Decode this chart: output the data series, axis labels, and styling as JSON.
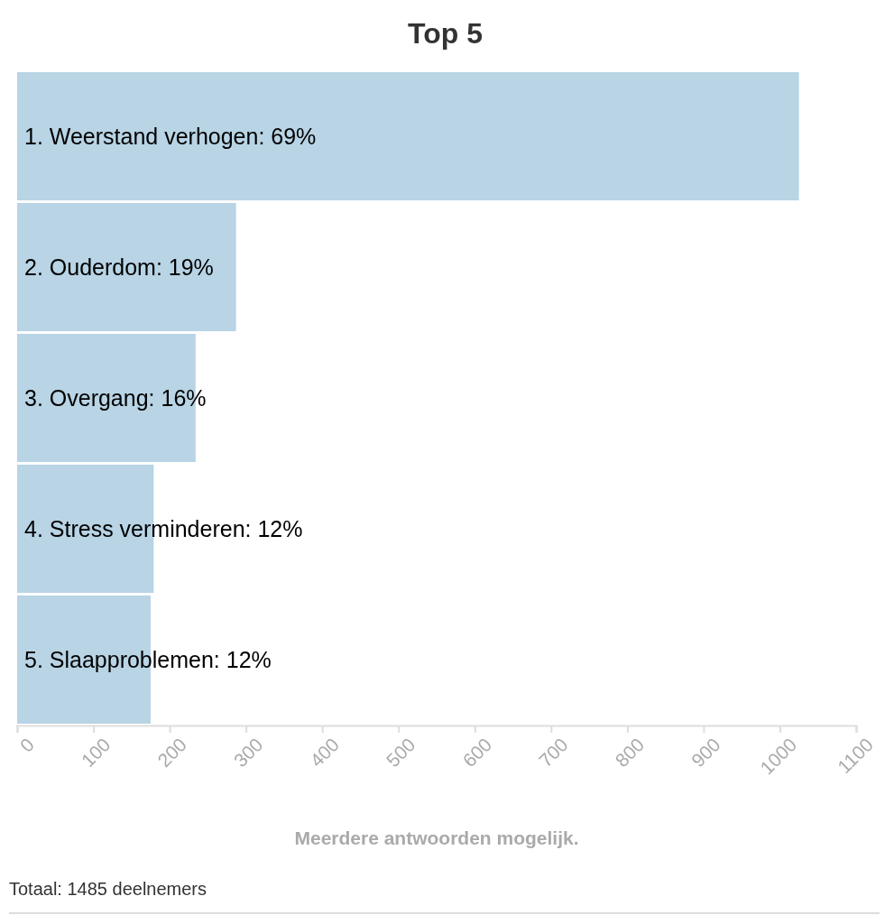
{
  "chart_data": {
    "type": "bar",
    "orientation": "horizontal",
    "title": "Top 5",
    "categories": [
      "1. Weerstand verhogen: 69%",
      "2. Ouderdom: 19%",
      "3. Overgang: 16%",
      "4. Stress verminderen: 12%",
      "5. Slaapproblemen: 12%"
    ],
    "values": [
      1025,
      287,
      234,
      179,
      175
    ],
    "color": "#b8d4e5",
    "xlim": [
      0,
      1100
    ],
    "xticks": [
      0,
      100,
      200,
      300,
      400,
      500,
      600,
      700,
      800,
      900,
      1000,
      1100
    ],
    "xlabel": "Meerdere antwoorden mogelijk.",
    "grid": false,
    "annotations": [
      "Totaal: 1485 deelnemers"
    ]
  }
}
